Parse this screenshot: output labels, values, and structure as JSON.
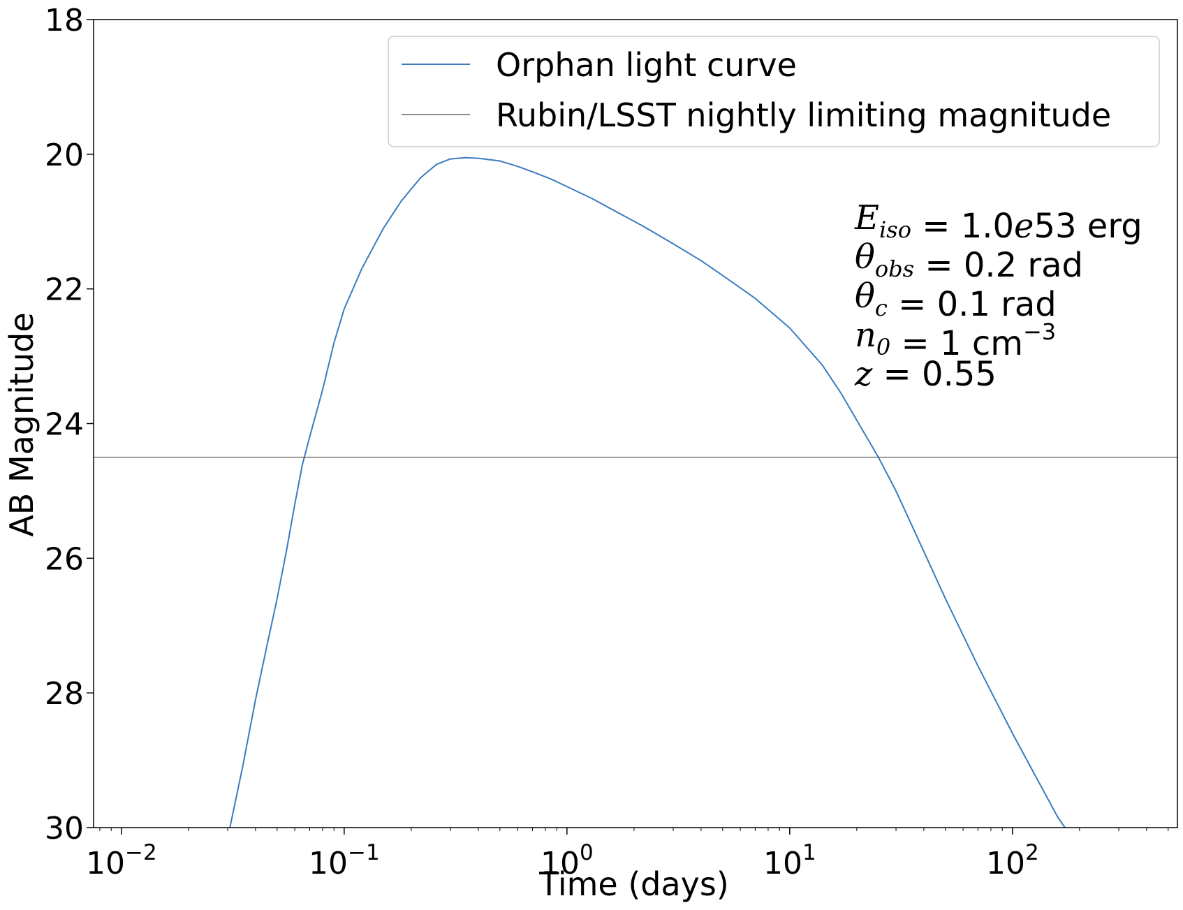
{
  "chart_data": {
    "type": "line",
    "xlabel": "Time (days)",
    "ylabel": "AB Magnitude",
    "xscale": "log",
    "xlim": [
      0.0075,
      550
    ],
    "ylim": [
      30,
      18
    ],
    "y_inverted": true,
    "x_tick_values": [
      0.01,
      0.1,
      1,
      10,
      100
    ],
    "x_tick_labels": [
      {
        "base": "10",
        "exp": "−2"
      },
      {
        "base": "10",
        "exp": "−1"
      },
      {
        "base": "10",
        "exp": "0"
      },
      {
        "base": "10",
        "exp": "1"
      },
      {
        "base": "10",
        "exp": "2"
      }
    ],
    "y_ticks": [
      18,
      20,
      22,
      24,
      26,
      28,
      30
    ],
    "grid": false,
    "legend": {
      "placement": "top-right",
      "entries": [
        "Orphan light curve",
        "Rubin/LSST nightly limiting magnitude"
      ]
    },
    "series": [
      {
        "name": "Orphan light curve",
        "color": "#3a7bbf",
        "x": [
          0.0307,
          0.035,
          0.04,
          0.045,
          0.05,
          0.055,
          0.06,
          0.065,
          0.07,
          0.08,
          0.09,
          0.1,
          0.12,
          0.15,
          0.18,
          0.22,
          0.26,
          0.3,
          0.35,
          0.4,
          0.5,
          0.6,
          0.7,
          0.85,
          1.0,
          1.3,
          1.7,
          2.2,
          3.0,
          4.0,
          5.0,
          7.0,
          10,
          14,
          17,
          20,
          25,
          30,
          40,
          50,
          70,
          100,
          130,
          160,
          172
        ],
        "y": [
          30.0,
          29.1,
          28.1,
          27.3,
          26.6,
          25.9,
          25.2,
          24.6,
          24.2,
          23.5,
          22.8,
          22.3,
          21.7,
          21.1,
          20.7,
          20.35,
          20.15,
          20.07,
          20.05,
          20.06,
          20.1,
          20.18,
          20.26,
          20.37,
          20.48,
          20.66,
          20.87,
          21.07,
          21.33,
          21.58,
          21.8,
          22.14,
          22.58,
          23.13,
          23.55,
          23.95,
          24.5,
          25.0,
          25.9,
          26.6,
          27.6,
          28.6,
          29.3,
          29.85,
          30.0
        ]
      },
      {
        "name": "Rubin/LSST nightly limiting magnitude",
        "color": "#444444",
        "constant_y": 24.5
      }
    ],
    "annotation": {
      "placement": "upper-right",
      "lines": [
        {
          "var": "E",
          "sub": "iso",
          "rest": " = 1.0",
          "rest_it": "e",
          "rest2": "53 erg"
        },
        {
          "var": "θ",
          "sub": "obs",
          "rest": " = 0.2 rad"
        },
        {
          "var": "θ",
          "sub": "c",
          "rest": " = 0.1 rad"
        },
        {
          "var": "n",
          "sub": "0",
          "rest": " = 1 cm",
          "sup": "−3"
        },
        {
          "var": "z",
          "rest": " = 0.55"
        }
      ]
    }
  }
}
